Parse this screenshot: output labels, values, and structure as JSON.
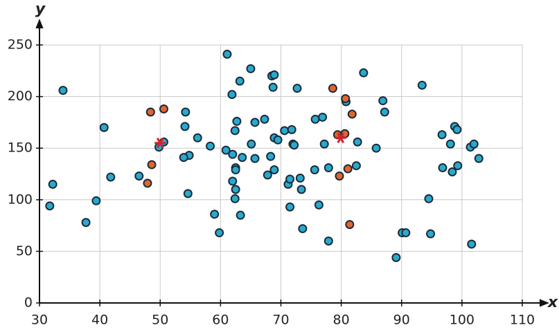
{
  "chart_data": {
    "type": "scatter",
    "x_label": "x",
    "y_label": "y",
    "xlim": [
      30,
      110
    ],
    "ylim": [
      0,
      250
    ],
    "xticks": [
      30,
      40,
      50,
      60,
      70,
      80,
      90,
      100,
      110
    ],
    "yticks": [
      0,
      50,
      100,
      150,
      200,
      250
    ],
    "grid": true,
    "series": [
      {
        "color": "#29a9cc",
        "marker": "circle",
        "x": [
          33.9,
          32.2,
          31.7,
          37.7,
          39.4,
          40.7,
          41.8,
          46.5,
          49.8,
          50.6,
          54.2,
          54.1,
          54.8,
          53.9,
          54.6,
          56.2,
          58.3,
          59.0,
          59.8,
          61.1,
          61.9,
          63.2,
          65.0,
          60.9,
          62.0,
          62.7,
          62.4,
          62.5,
          62.5,
          62.0,
          62.5,
          62.4,
          63.3,
          63.6,
          65.1,
          65.7,
          65.7,
          67.3,
          67.8,
          68.3,
          68.5,
          68.9,
          68.7,
          68.9,
          69.5,
          68.9,
          70.6,
          71.8,
          71.2,
          71.5,
          72.0,
          72.2,
          71.5,
          72.7,
          73.2,
          73.4,
          73.6,
          75.7,
          76.9,
          77.2,
          75.6,
          76.3,
          77.9,
          77.9,
          80.8,
          82.7,
          82.5,
          83.7,
          85.8,
          86.9,
          87.2,
          89.1,
          90.1,
          90.7,
          93.4,
          94.5,
          94.8,
          96.7,
          96.8,
          98.1,
          98.4,
          98.8,
          99.2,
          99.3,
          101.4,
          102.0,
          101.6,
          102.8
        ],
        "values": [
          206,
          115,
          94,
          78,
          99,
          170,
          122,
          123,
          151,
          156,
          185,
          171,
          143,
          141,
          106,
          160,
          152,
          86,
          68,
          241,
          202,
          215,
          227,
          148,
          144,
          176,
          167,
          131,
          129,
          118,
          110,
          101,
          85,
          141,
          154,
          175,
          140,
          178,
          124,
          142,
          220,
          221,
          209,
          160,
          158,
          129,
          167,
          168,
          115,
          120,
          154,
          153,
          93,
          208,
          121,
          110,
          72,
          178,
          180,
          154,
          129,
          95,
          131,
          60,
          195,
          156,
          133,
          223,
          150,
          196,
          185,
          44,
          68,
          68,
          211,
          101,
          67,
          163,
          131,
          154,
          127,
          171,
          168,
          133,
          151,
          154,
          57,
          140
        ]
      },
      {
        "color": "#e0662e",
        "marker": "circle",
        "x": [
          48.4,
          50.6,
          48.6,
          47.9,
          78.6,
          80.7,
          81.8,
          79.4,
          80.6,
          81.1,
          79.7,
          81.4
        ],
        "values": [
          185,
          188,
          134,
          116,
          208,
          198,
          183,
          163,
          164,
          130,
          123,
          76
        ]
      },
      {
        "color": "#d42030",
        "marker": "asterisk",
        "x": [
          50.0,
          79.9
        ],
        "values": [
          155,
          160
        ]
      }
    ]
  }
}
